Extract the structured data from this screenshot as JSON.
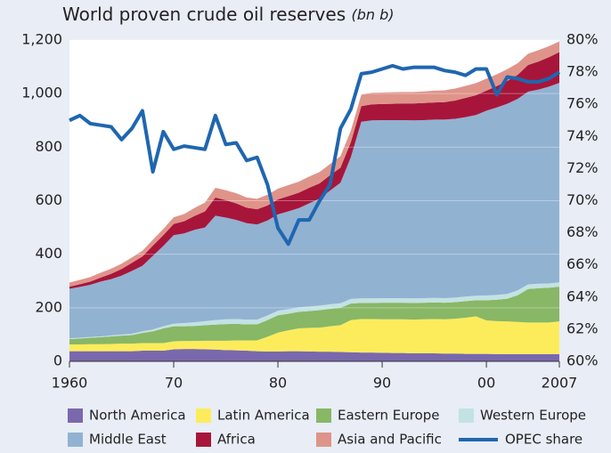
{
  "chart_data": {
    "type": "stacked_area_line",
    "title": "World proven crude oil reserves",
    "subtitle": "(bn b)",
    "x": [
      1960,
      1961,
      1962,
      1963,
      1964,
      1965,
      1966,
      1967,
      1968,
      1969,
      1970,
      1971,
      1972,
      1973,
      1974,
      1975,
      1976,
      1977,
      1978,
      1979,
      1980,
      1981,
      1982,
      1983,
      1984,
      1985,
      1986,
      1987,
      1988,
      1989,
      1990,
      1991,
      1992,
      1993,
      1994,
      1995,
      1996,
      1997,
      1998,
      1999,
      2000,
      2001,
      2002,
      2003,
      2004,
      2005,
      2006,
      2007
    ],
    "xlim": [
      1960,
      2007
    ],
    "xticks": [
      {
        "value": 1960,
        "label": "1960"
      },
      {
        "value": 1970,
        "label": "70"
      },
      {
        "value": 1980,
        "label": "80"
      },
      {
        "value": 1990,
        "label": "90"
      },
      {
        "value": 2000,
        "label": "00"
      },
      {
        "value": 2007,
        "label": "2007"
      }
    ],
    "ylim": [
      0,
      1200
    ],
    "yticks": [
      0,
      200,
      400,
      600,
      800,
      {
        "value": 1000,
        "label": "1,000"
      },
      {
        "value": 1200,
        "label": "1,200"
      }
    ],
    "y2lim": [
      60,
      80
    ],
    "y2ticks": [
      {
        "value": 60,
        "label": "60%"
      },
      {
        "value": 62,
        "label": "62%"
      },
      {
        "value": 64,
        "label": "64%"
      },
      {
        "value": 66,
        "label": "66%"
      },
      {
        "value": 68,
        "label": "68%"
      },
      {
        "value": 70,
        "label": "70%"
      },
      {
        "value": 72,
        "label": "72%"
      },
      {
        "value": 74,
        "label": "74%"
      },
      {
        "value": 76,
        "label": "76%"
      },
      {
        "value": 78,
        "label": "78%"
      },
      {
        "value": 80,
        "label": "80%"
      }
    ],
    "grid": true,
    "series": [
      {
        "name": "North America",
        "color": "#7a68ad",
        "values": [
          38,
          38,
          38,
          38,
          38,
          38,
          38,
          40,
          40,
          40,
          45,
          46,
          46,
          45,
          44,
          42,
          41,
          40,
          38,
          37,
          37,
          38,
          38,
          37,
          36,
          36,
          35,
          34,
          33,
          33,
          32,
          31,
          31,
          30,
          30,
          30,
          29,
          29,
          28,
          28,
          28,
          27,
          27,
          27,
          27,
          27,
          27,
          27
        ]
      },
      {
        "name": "Latin America",
        "color": "#fcec5c",
        "values": [
          25,
          25,
          26,
          26,
          27,
          28,
          28,
          28,
          28,
          28,
          30,
          30,
          30,
          32,
          33,
          35,
          37,
          38,
          40,
          55,
          70,
          78,
          85,
          88,
          90,
          95,
          100,
          120,
          125,
          125,
          125,
          126,
          126,
          126,
          127,
          128,
          128,
          130,
          135,
          140,
          125,
          123,
          122,
          120,
          118,
          118,
          118,
          122
        ]
      },
      {
        "name": "Eastern Europe",
        "color": "#88b766",
        "values": [
          20,
          22,
          24,
          26,
          28,
          30,
          32,
          38,
          44,
          55,
          56,
          55,
          56,
          58,
          60,
          62,
          62,
          60,
          60,
          62,
          65,
          62,
          62,
          63,
          65,
          65,
          65,
          62,
          60,
          60,
          62,
          62,
          62,
          62,
          62,
          62,
          62,
          62,
          62,
          60,
          75,
          80,
          85,
          100,
          125,
          128,
          130,
          130
        ]
      },
      {
        "name": "Western Europe",
        "color": "#c3e2e3",
        "values": [
          3,
          3,
          3,
          3,
          4,
          4,
          5,
          6,
          7,
          8,
          10,
          12,
          14,
          15,
          17,
          18,
          18,
          18,
          18,
          17,
          17,
          17,
          17,
          17,
          17,
          17,
          17,
          17,
          17,
          17,
          17,
          17,
          17,
          17,
          17,
          17,
          17,
          17,
          17,
          17,
          18,
          18,
          18,
          18,
          17,
          17,
          16,
          16
        ]
      },
      {
        "name": "Middle East",
        "color": "#92b2d2",
        "values": [
          185,
          190,
          195,
          205,
          210,
          220,
          235,
          245,
          275,
          300,
          330,
          335,
          345,
          350,
          390,
          380,
          370,
          360,
          355,
          355,
          360,
          365,
          370,
          385,
          400,
          425,
          450,
          530,
          660,
          665,
          665,
          665,
          665,
          665,
          665,
          666,
          667,
          668,
          670,
          675,
          690,
          700,
          710,
          715,
          720,
          725,
          735,
          745
        ]
      },
      {
        "name": "Africa",
        "color": "#a7163a",
        "values": [
          8,
          10,
          12,
          15,
          20,
          25,
          30,
          35,
          38,
          40,
          42,
          45,
          52,
          60,
          68,
          65,
          62,
          58,
          57,
          56,
          56,
          57,
          58,
          58,
          57,
          57,
          56,
          56,
          58,
          60,
          60,
          61,
          62,
          63,
          64,
          64,
          65,
          68,
          72,
          74,
          75,
          80,
          85,
          90,
          100,
          105,
          110,
          115
        ]
      },
      {
        "name": "Asia and Pacific",
        "color": "#df948a",
        "values": [
          15,
          16,
          17,
          18,
          19,
          20,
          20,
          21,
          22,
          23,
          25,
          27,
          30,
          33,
          36,
          37,
          38,
          38,
          39,
          40,
          40,
          41,
          41,
          42,
          42,
          42,
          43,
          43,
          43,
          43,
          43,
          43,
          43,
          43,
          43,
          44,
          44,
          45,
          45,
          45,
          45,
          44,
          44,
          43,
          42,
          42,
          41,
          40
        ]
      },
      {
        "name": "OPEC share",
        "color": "#1f66b0",
        "axis": "y2",
        "values": [
          75,
          75.3,
          74.8,
          74.7,
          74.6,
          73.8,
          74.5,
          75.6,
          71.8,
          74.3,
          73.2,
          73.4,
          73.3,
          73.2,
          75.3,
          73.5,
          73.6,
          72.5,
          72.7,
          71,
          68.3,
          67.3,
          68.8,
          68.8,
          70,
          71,
          74.5,
          75.7,
          77.9,
          78,
          78.2,
          78.4,
          78.2,
          78.3,
          78.3,
          78.3,
          78.1,
          78,
          77.8,
          78.2,
          78.2,
          76.6,
          77.7,
          77.6,
          77.4,
          77.4,
          77.6,
          78
        ]
      }
    ]
  }
}
